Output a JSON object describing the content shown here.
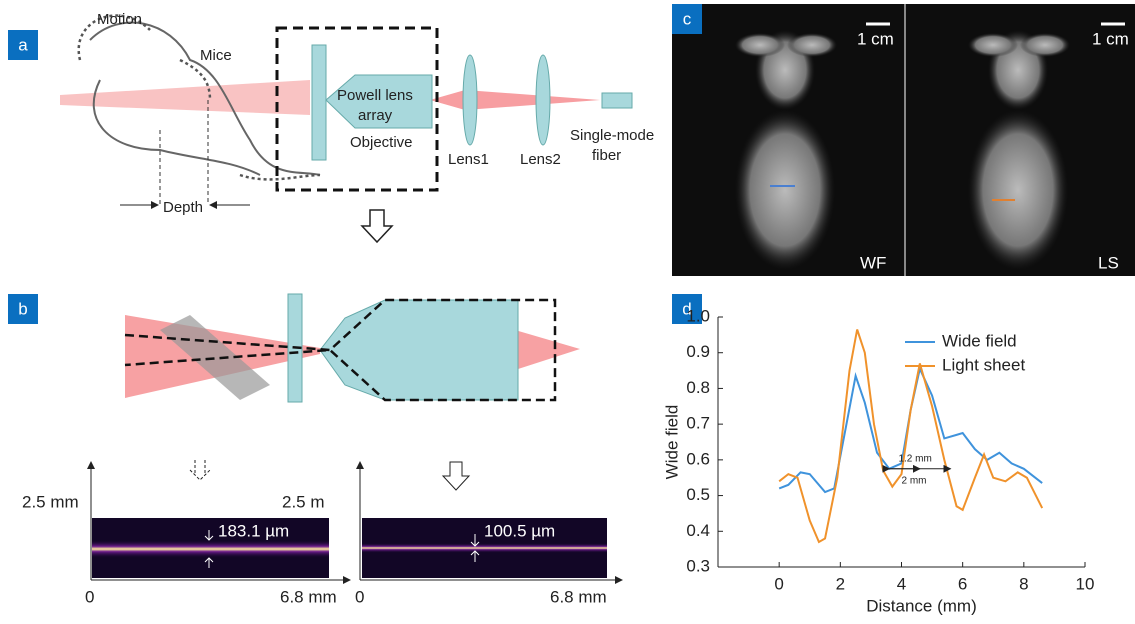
{
  "panel_labels": [
    "a",
    "b",
    "c",
    "d"
  ],
  "diagram_a": {
    "motion": "Motion",
    "mice": "Mice",
    "depth": "Depth",
    "lens_array": [
      "Powell lens",
      "array"
    ],
    "objective": "Objective",
    "lens1": "Lens1",
    "lens2": "Lens2",
    "fiber": [
      "Single-mode",
      "fiber"
    ]
  },
  "beam_b": {
    "left": {
      "height": "2.5 mm",
      "width_label": "183.1 µm",
      "origin": "0",
      "length": "6.8 mm"
    },
    "right": {
      "height": "2.5 m",
      "width_label": "100.5 µm",
      "origin": "0",
      "length": "6.8 mm"
    }
  },
  "images_c": {
    "scale_bars": [
      "1 cm",
      "1 cm"
    ],
    "labels": [
      "WF",
      "LS"
    ]
  },
  "chart_data": {
    "type": "line",
    "xlabel": "Distance (mm)",
    "ylabel": "Wide field",
    "xlim": [
      -2,
      10
    ],
    "ylim": [
      0.3,
      1
    ],
    "xticks": [
      0,
      2,
      4,
      6,
      8,
      10
    ],
    "yticks": [
      0.3,
      0.4,
      0.5,
      0.6,
      0.7,
      0.8,
      0.9,
      {
        "value": 1,
        "label": "1.0"
      }
    ],
    "legend": "upper right",
    "annotations": [
      "1.2 mm",
      "2 mm"
    ],
    "series": [
      {
        "name": "Wide field",
        "color": "#3f93dc",
        "x": [
          0,
          0.3,
          0.7,
          1,
          1.5,
          1.8,
          2.2,
          2.5,
          2.8,
          3.2,
          3.6,
          4,
          4.3,
          4.6,
          5,
          5.4,
          5.8,
          6,
          6.4,
          6.8,
          7.2,
          7.6,
          8,
          8.6
        ],
        "values": [
          0.52,
          0.53,
          0.565,
          0.56,
          0.51,
          0.52,
          0.7,
          0.835,
          0.76,
          0.62,
          0.575,
          0.59,
          0.74,
          0.855,
          0.78,
          0.66,
          0.67,
          0.675,
          0.63,
          0.6,
          0.62,
          0.59,
          0.575,
          0.535
        ]
      },
      {
        "name": "Light sheet",
        "color": "#f0922b",
        "x": [
          0,
          0.3,
          0.6,
          1,
          1.3,
          1.5,
          1.9,
          2.3,
          2.55,
          2.8,
          3.1,
          3.4,
          3.7,
          4,
          4.3,
          4.6,
          5,
          5.4,
          5.8,
          6,
          6.4,
          6.7,
          7,
          7.4,
          7.8,
          8.1,
          8.6
        ],
        "values": [
          0.54,
          0.56,
          0.55,
          0.43,
          0.37,
          0.38,
          0.55,
          0.85,
          0.965,
          0.9,
          0.7,
          0.57,
          0.525,
          0.56,
          0.74,
          0.87,
          0.75,
          0.6,
          0.47,
          0.46,
          0.55,
          0.615,
          0.55,
          0.54,
          0.565,
          0.55,
          0.465
        ]
      }
    ]
  }
}
